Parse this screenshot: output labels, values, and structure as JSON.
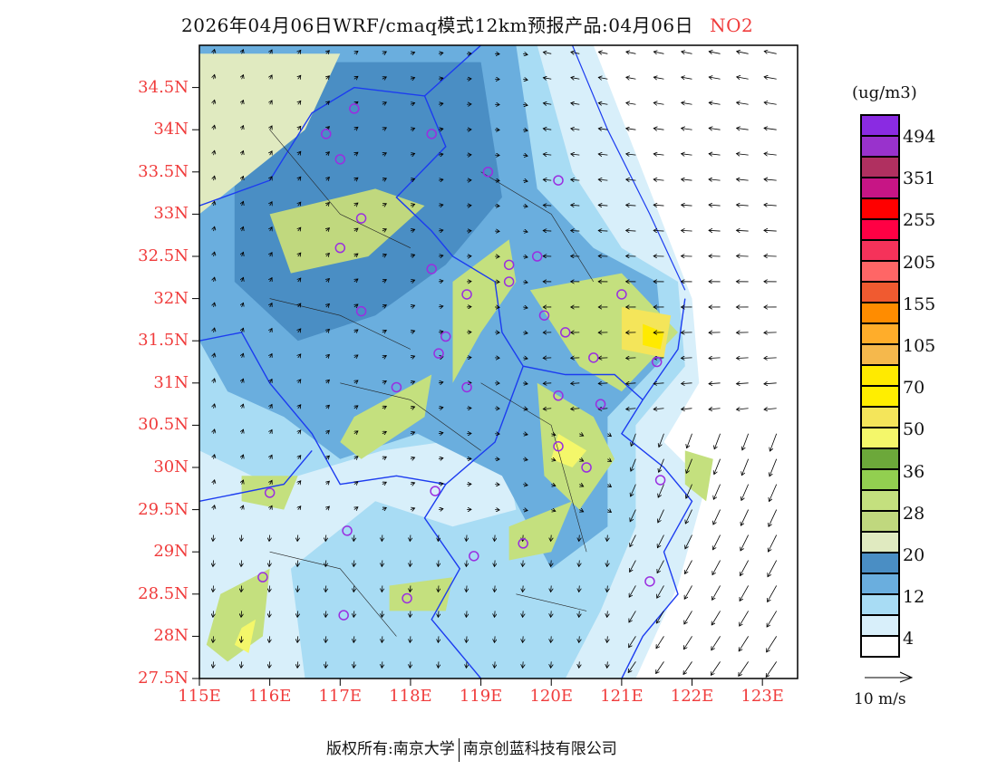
{
  "title": {
    "text": "2026年04月06日WRF/cmaq模式12km预报产品:04月06日",
    "pollutant": "NO2"
  },
  "map": {
    "lat_labels": [
      "27.5N",
      "28N",
      "28.5N",
      "29N",
      "29.5N",
      "30N",
      "30.5N",
      "31N",
      "31.5N",
      "32N",
      "32.5N",
      "33N",
      "33.5N",
      "34N",
      "34.5N"
    ],
    "lat_values": [
      27.5,
      28,
      28.5,
      29,
      29.5,
      30,
      30.5,
      31,
      31.5,
      32,
      32.5,
      33,
      33.5,
      34,
      34.5
    ],
    "lon_labels": [
      "115E",
      "116E",
      "117E",
      "118E",
      "119E",
      "120E",
      "121E",
      "122E",
      "123E"
    ],
    "lon_values": [
      115,
      116,
      117,
      118,
      119,
      120,
      121,
      122,
      123
    ],
    "extent": {
      "lon": [
        115,
        123.5
      ],
      "lat": [
        27.5,
        35
      ]
    }
  },
  "legend": {
    "unit": "(ug/m3)",
    "colors": [
      "#8a2be2",
      "#9932cc",
      "#b03060",
      "#c71585",
      "#ff0000",
      "#ff0044",
      "#f5325a",
      "#ff6666",
      "#f05a30",
      "#ff8c00",
      "#ffad2a",
      "#f5b84c",
      "#ffea00",
      "#ffee00",
      "#f4e55a",
      "#f4f76a",
      "#6ca83a",
      "#92cf50",
      "#c4e07e",
      "#c0d87e",
      "#e0eac0",
      "#4a8ec4",
      "#6aaede",
      "#a8dcf4",
      "#d8effa",
      "#ffffff"
    ],
    "labels": [
      "494",
      "351",
      "255",
      "205",
      "155",
      "105",
      "70",
      "50",
      "36",
      "28",
      "20",
      "12",
      "4"
    ]
  },
  "vector_key": {
    "label": "10 m/s"
  },
  "footer": {
    "left": "版权所有:南京大学",
    "right": "南京创蓝科技有限公司"
  }
}
